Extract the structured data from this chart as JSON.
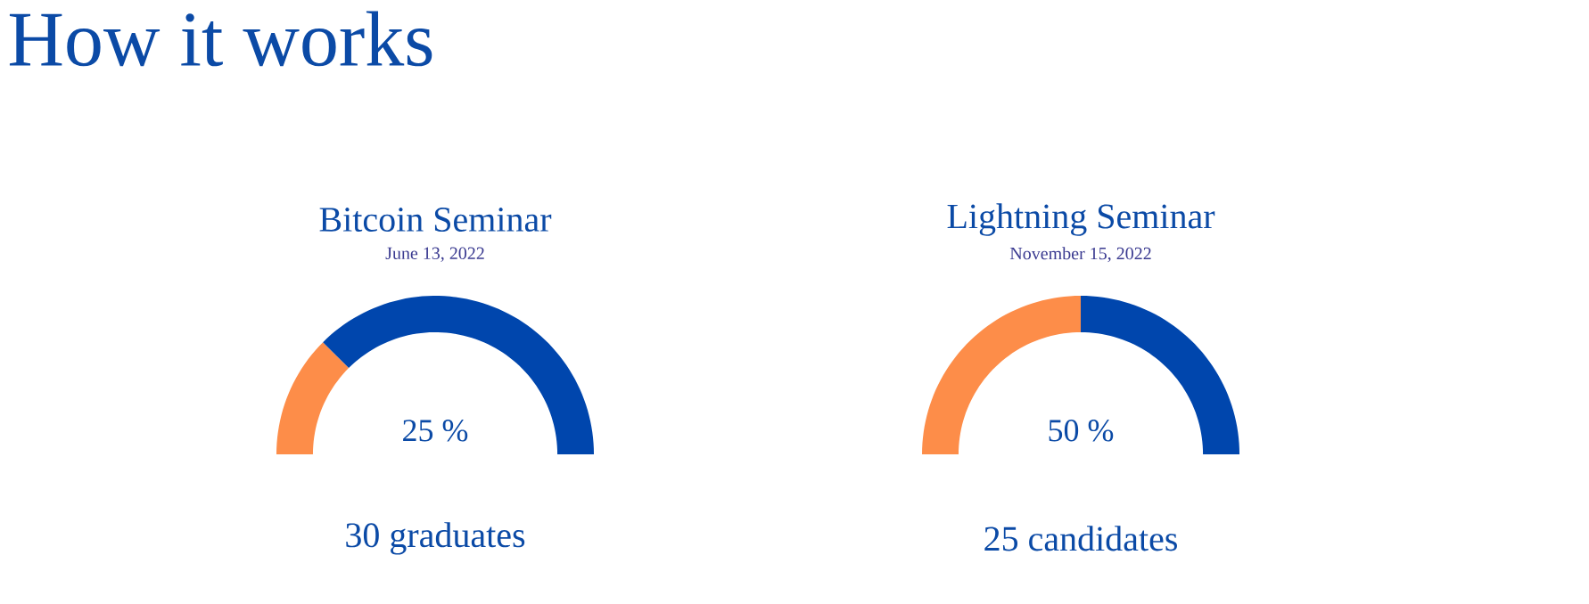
{
  "chart_data": [
    {
      "type": "other",
      "title": "How it works"
    },
    {
      "type": "donut",
      "title": "Bitcoin Seminar",
      "subtitle": "June 13, 2022",
      "categories": [
        null,
        null
      ],
      "values": [
        25,
        75
      ],
      "colors": [
        "#fd8d49",
        "#0046ad"
      ],
      "annotations": [
        "25 %",
        "30 graduates"
      ]
    },
    {
      "type": "donut",
      "title": "Lightning Seminar",
      "subtitle": "November 15, 2022",
      "categories": [
        null,
        null
      ],
      "values": [
        50,
        50
      ],
      "colors": [
        "#fd8d49",
        "#0046ad"
      ],
      "annotations": [
        "50 %",
        "25 candidates"
      ]
    }
  ]
}
